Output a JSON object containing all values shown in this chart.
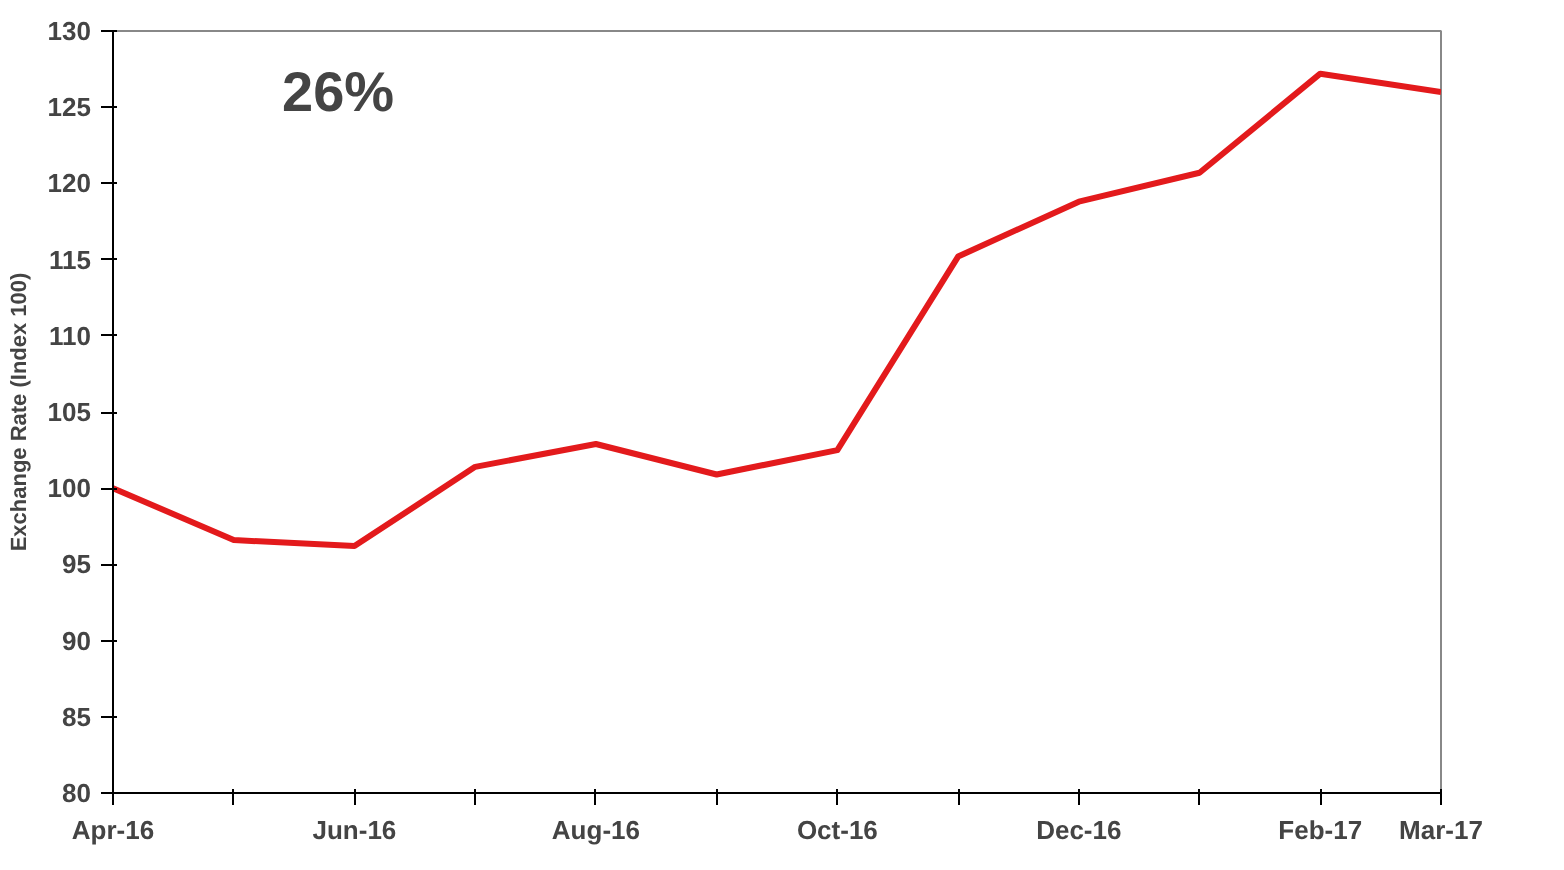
{
  "chart_data": {
    "type": "line",
    "ylabel": "Exchange Rate (Index 100)",
    "categories": [
      "Apr-16",
      null,
      "Jun-16",
      null,
      "Aug-16",
      null,
      "Oct-16",
      null,
      "Dec-16",
      null,
      "Feb-17",
      "Mar-17"
    ],
    "series": [
      {
        "color": "#e31a1c",
        "values": [
          100,
          96.6,
          96.2,
          101.4,
          102.9,
          100.9,
          102.5,
          115.2,
          118.8,
          120.7,
          127.2,
          126.0
        ]
      }
    ],
    "ylim": [
      80,
      130
    ],
    "yticks": [
      80,
      85,
      90,
      95,
      100,
      105,
      110,
      115,
      120,
      125,
      130
    ],
    "grid": false,
    "marker": "none",
    "line_style": "solid",
    "annotations": [
      "26%"
    ]
  }
}
